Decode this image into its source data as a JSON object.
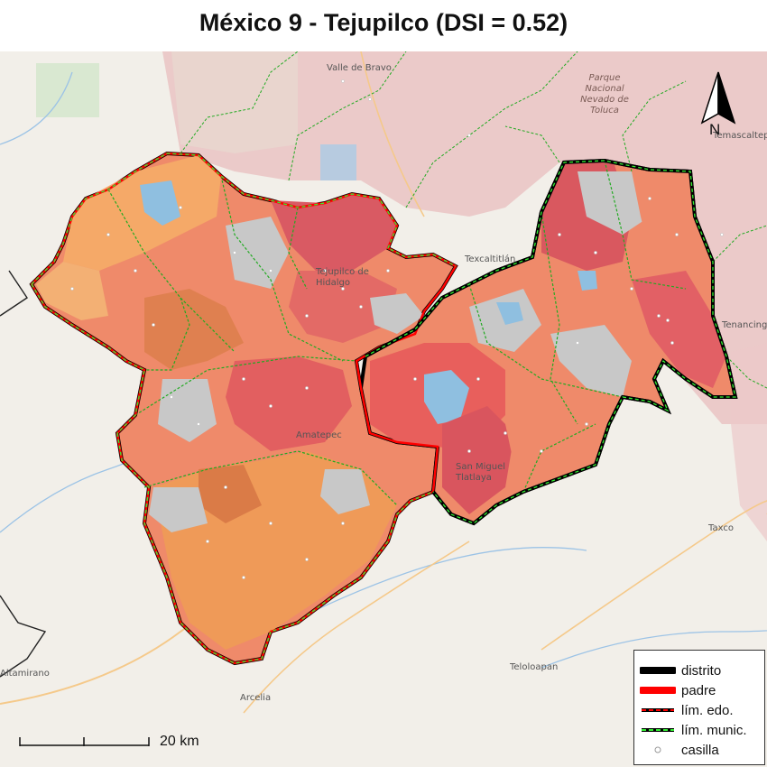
{
  "title": "México 9 - Tejupilco (DSI = 0.52)",
  "place_labels": {
    "valle_de_bravo": "Valle de Bravo",
    "tejupilco": "Tejupilco de Hidalgo",
    "texcaltitlan": "Texcaltitlán",
    "amatepec": "Amatepec",
    "tlatlaya": "San Miguel Tlatlaya",
    "taxco": "Taxco",
    "teloloapan": "Teloloapan",
    "arcelia": "Arcelia",
    "altamirano": "Altamirano",
    "tenancingo": "Tenancingo",
    "temascaltepec": "Temascaltepec",
    "parque": "Parque Nacional Nevado de Toluca"
  },
  "north_arrow": {
    "label": "N"
  },
  "scale": {
    "label": "20 km"
  },
  "legend": {
    "items": [
      {
        "label": "distrito",
        "symbol": "thick-black-line",
        "color": "#000000"
      },
      {
        "label": "padre",
        "symbol": "thick-red-line",
        "color": "#ff0000"
      },
      {
        "label": "lím. edo.",
        "symbol": "black-red-dashed-line",
        "color": "#ff0000"
      },
      {
        "label": "lím. munic.",
        "symbol": "black-green-dashed-line",
        "color": "#33ee33"
      },
      {
        "label": "casilla",
        "symbol": "hollow-circle",
        "color": "#999999"
      }
    ]
  },
  "colors": {
    "background": "#f2efe9",
    "district_fill_light": "#f5a968",
    "district_fill_mid": "#ef8a6a",
    "district_fill_dark": "#e2585e",
    "missing_fill": "#c8c8c8",
    "water": "#8fbfe0",
    "district_border": "#000000",
    "parent_border": "#ff0000",
    "municipal_border": "#33ee33"
  }
}
